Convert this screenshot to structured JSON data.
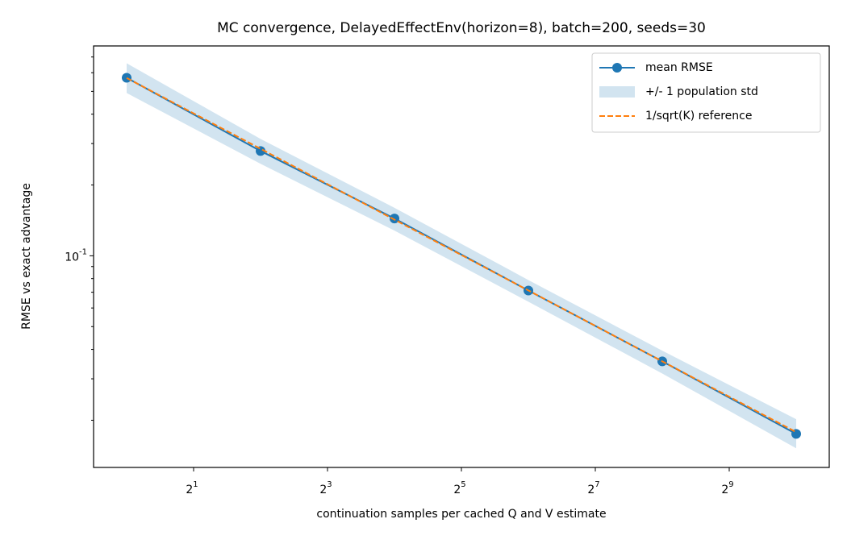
{
  "chart_data": {
    "type": "line",
    "title": "MC convergence, DelayedEffectEnv(horizon=8), batch=200, seeds=30",
    "x_label": "continuation samples per cached Q and V estimate",
    "y_label": "RMSE vs exact advantage",
    "x": [
      1,
      4,
      16,
      64,
      256,
      1024
    ],
    "x_scale": "log2",
    "y_scale": "log10",
    "xlim": [
      0.71,
      1442
    ],
    "ylim": [
      0.0126,
      0.78
    ],
    "xticks": [
      {
        "value": 2,
        "label": "2^1"
      },
      {
        "value": 8,
        "label": "2^3"
      },
      {
        "value": 32,
        "label": "2^5"
      },
      {
        "value": 128,
        "label": "2^7"
      },
      {
        "value": 512,
        "label": "2^9"
      }
    ],
    "yticks": [
      {
        "value": 0.1,
        "label": "10^-1"
      }
    ],
    "yminorticks": [
      0.02,
      0.03,
      0.04,
      0.05,
      0.06,
      0.07,
      0.08,
      0.09,
      0.2,
      0.3,
      0.4,
      0.5,
      0.6,
      0.7
    ],
    "legend": "upper right",
    "series": [
      {
        "name": "mean RMSE",
        "color": "#1f77b4",
        "style": "line-marker",
        "values": [
          0.571,
          0.279,
          0.144,
          0.0712,
          0.0356,
          0.0175
        ]
      },
      {
        "name": "+/- 1 population std",
        "color": "#1f77b4",
        "style": "band",
        "lower": [
          0.492,
          0.246,
          0.128,
          0.0638,
          0.0316,
          0.0152
        ],
        "upper": [
          0.658,
          0.314,
          0.16,
          0.0789,
          0.0395,
          0.0202
        ]
      },
      {
        "name": "1/sqrt(K) reference",
        "color": "#ff7f0e",
        "style": "dashed",
        "values": [
          0.57,
          0.285,
          0.1425,
          0.07125,
          0.0356,
          0.0178
        ]
      }
    ]
  }
}
